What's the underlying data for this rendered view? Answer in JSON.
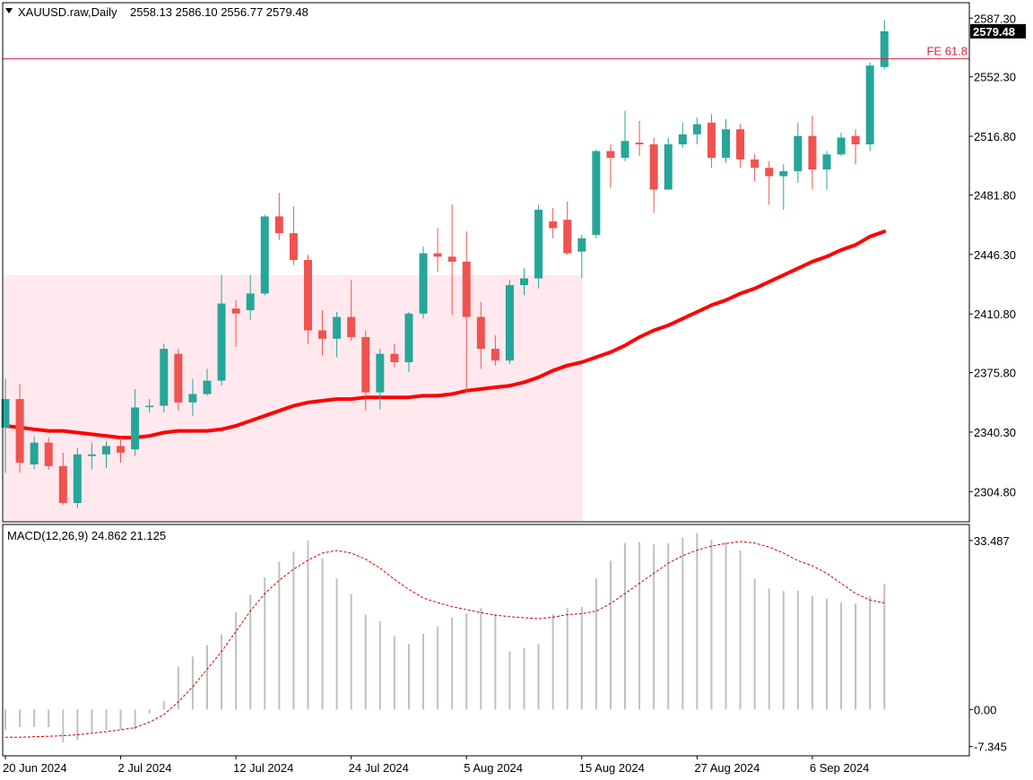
{
  "chart_data": {
    "type": "candlestick",
    "symbol": "XAUUSD.raw",
    "timeframe": "Daily",
    "header": {
      "title": "XAUUSD.raw,Daily",
      "ohlc": "2558.13 2586.10 2556.77 2579.48"
    },
    "current_price": 2579.48,
    "current_price_label": "2579.48",
    "y_axis": {
      "ylim": [
        2287.3,
        2596.0
      ],
      "ticks": [
        2304.8,
        2340.3,
        2375.8,
        2410.8,
        2446.3,
        2481.8,
        2516.8,
        2552.3,
        2587.3
      ],
      "tick_labels": [
        "2304.80",
        "2340.30",
        "2375.80",
        "2410.80",
        "2446.30",
        "2481.80",
        "2516.80",
        "2552.30",
        "2587.30"
      ]
    },
    "x_axis": {
      "labels": [
        "20 Jun 2024",
        "2 Jul 2024",
        "12 Jul 2024",
        "24 Jul 2024",
        "5 Aug 2024",
        "15 Aug 2024",
        "27 Aug 2024",
        "6 Sep 2024"
      ],
      "label_bar_index": [
        0,
        8,
        16,
        24,
        32,
        40,
        48,
        56
      ]
    },
    "candles": [
      {
        "date": "20 Jun",
        "o": 2343,
        "h": 2372,
        "l": 2316,
        "c": 2360
      },
      {
        "date": "21 Jun",
        "o": 2360,
        "h": 2369,
        "l": 2316,
        "c": 2322
      },
      {
        "date": "24 Jun",
        "o": 2321,
        "h": 2338,
        "l": 2318,
        "c": 2334
      },
      {
        "date": "25 Jun",
        "o": 2334,
        "h": 2337,
        "l": 2318,
        "c": 2320
      },
      {
        "date": "26 Jun",
        "o": 2320,
        "h": 2328,
        "l": 2297,
        "c": 2298
      },
      {
        "date": "27 Jun",
        "o": 2298,
        "h": 2331,
        "l": 2295,
        "c": 2327
      },
      {
        "date": "28 Jun",
        "o": 2326,
        "h": 2334,
        "l": 2318,
        "c": 2327
      },
      {
        "date": "1 Jul",
        "o": 2327,
        "h": 2335,
        "l": 2319,
        "c": 2332
      },
      {
        "date": "2 Jul",
        "o": 2332,
        "h": 2337,
        "l": 2322,
        "c": 2328
      },
      {
        "date": "3 Jul",
        "o": 2330,
        "h": 2366,
        "l": 2326,
        "c": 2355
      },
      {
        "date": "4 Jul",
        "o": 2356,
        "h": 2360,
        "l": 2352,
        "c": 2356
      },
      {
        "date": "5 Jul",
        "o": 2356,
        "h": 2393,
        "l": 2352,
        "c": 2390
      },
      {
        "date": "8 Jul",
        "o": 2387,
        "h": 2390,
        "l": 2353,
        "c": 2358
      },
      {
        "date": "9 Jul",
        "o": 2358,
        "h": 2372,
        "l": 2350,
        "c": 2363
      },
      {
        "date": "10 Jul",
        "o": 2363,
        "h": 2378,
        "l": 2362,
        "c": 2371
      },
      {
        "date": "11 Jul",
        "o": 2371,
        "h": 2434,
        "l": 2368,
        "c": 2417
      },
      {
        "date": "12 Jul",
        "o": 2414,
        "h": 2419,
        "l": 2391,
        "c": 2411
      },
      {
        "date": "15 Jul",
        "o": 2413,
        "h": 2434,
        "l": 2407,
        "c": 2423
      },
      {
        "date": "16 Jul",
        "o": 2423,
        "h": 2470,
        "l": 2422,
        "c": 2469
      },
      {
        "date": "17 Jul",
        "o": 2469,
        "h": 2483,
        "l": 2455,
        "c": 2459
      },
      {
        "date": "18 Jul",
        "o": 2459,
        "h": 2475,
        "l": 2440,
        "c": 2443
      },
      {
        "date": "19 Jul",
        "o": 2443,
        "h": 2446,
        "l": 2393,
        "c": 2401
      },
      {
        "date": "22 Jul",
        "o": 2401,
        "h": 2413,
        "l": 2386,
        "c": 2396
      },
      {
        "date": "23 Jul",
        "o": 2396,
        "h": 2412,
        "l": 2385,
        "c": 2409
      },
      {
        "date": "24 Jul",
        "o": 2409,
        "h": 2431,
        "l": 2395,
        "c": 2397
      },
      {
        "date": "25 Jul",
        "o": 2397,
        "h": 2401,
        "l": 2353,
        "c": 2364
      },
      {
        "date": "26 Jul",
        "o": 2364,
        "h": 2390,
        "l": 2354,
        "c": 2387
      },
      {
        "date": "29 Jul",
        "o": 2387,
        "h": 2393,
        "l": 2379,
        "c": 2382
      },
      {
        "date": "30 Jul",
        "o": 2382,
        "h": 2412,
        "l": 2376,
        "c": 2411
      },
      {
        "date": "31 Jul",
        "o": 2411,
        "h": 2451,
        "l": 2408,
        "c": 2447
      },
      {
        "date": "1 Aug",
        "o": 2447,
        "h": 2462,
        "l": 2436,
        "c": 2445
      },
      {
        "date": "2 Aug",
        "o": 2445,
        "h": 2476,
        "l": 2410,
        "c": 2442
      },
      {
        "date": "5 Aug",
        "o": 2442,
        "h": 2460,
        "l": 2364,
        "c": 2409
      },
      {
        "date": "6 Aug",
        "o": 2409,
        "h": 2418,
        "l": 2378,
        "c": 2390
      },
      {
        "date": "7 Aug",
        "o": 2390,
        "h": 2398,
        "l": 2380,
        "c": 2383
      },
      {
        "date": "8 Aug",
        "o": 2383,
        "h": 2431,
        "l": 2381,
        "c": 2428
      },
      {
        "date": "9 Aug",
        "o": 2428,
        "h": 2438,
        "l": 2422,
        "c": 2432
      },
      {
        "date": "12 Aug",
        "o": 2432,
        "h": 2476,
        "l": 2426,
        "c": 2473
      },
      {
        "date": "13 Aug",
        "o": 2466,
        "h": 2474,
        "l": 2456,
        "c": 2462
      },
      {
        "date": "14 Aug",
        "o": 2467,
        "h": 2478,
        "l": 2446,
        "c": 2447
      },
      {
        "date": "15 Aug",
        "o": 2448,
        "h": 2458,
        "l": 2432,
        "c": 2456
      },
      {
        "date": "16 Aug",
        "o": 2458,
        "h": 2509,
        "l": 2456,
        "c": 2508
      },
      {
        "date": "19 Aug",
        "o": 2508,
        "h": 2512,
        "l": 2486,
        "c": 2504
      },
      {
        "date": "20 Aug",
        "o": 2504,
        "h": 2532,
        "l": 2502,
        "c": 2514
      },
      {
        "date": "21 Aug",
        "o": 2513,
        "h": 2526,
        "l": 2505,
        "c": 2512
      },
      {
        "date": "22 Aug",
        "o": 2512,
        "h": 2516,
        "l": 2471,
        "c": 2485
      },
      {
        "date": "23 Aug",
        "o": 2485,
        "h": 2516,
        "l": 2485,
        "c": 2512
      },
      {
        "date": "26 Aug",
        "o": 2512,
        "h": 2525,
        "l": 2510,
        "c": 2518
      },
      {
        "date": "27 Aug",
        "o": 2518,
        "h": 2528,
        "l": 2512,
        "c": 2524
      },
      {
        "date": "28 Aug",
        "o": 2525,
        "h": 2530,
        "l": 2498,
        "c": 2504
      },
      {
        "date": "29 Aug",
        "o": 2504,
        "h": 2527,
        "l": 2501,
        "c": 2521
      },
      {
        "date": "30 Aug",
        "o": 2521,
        "h": 2524,
        "l": 2498,
        "c": 2503
      },
      {
        "date": "2 Sep",
        "o": 2503,
        "h": 2506,
        "l": 2490,
        "c": 2498
      },
      {
        "date": "3 Sep",
        "o": 2498,
        "h": 2502,
        "l": 2476,
        "c": 2493
      },
      {
        "date": "4 Sep",
        "o": 2493,
        "h": 2500,
        "l": 2473,
        "c": 2496
      },
      {
        "date": "5 Sep",
        "o": 2496,
        "h": 2525,
        "l": 2489,
        "c": 2517
      },
      {
        "date": "6 Sep",
        "o": 2517,
        "h": 2529,
        "l": 2485,
        "c": 2497
      },
      {
        "date": "9 Sep",
        "o": 2497,
        "h": 2508,
        "l": 2485,
        "c": 2506
      },
      {
        "date": "10 Sep",
        "o": 2506,
        "h": 2519,
        "l": 2505,
        "c": 2516
      },
      {
        "date": "11 Sep",
        "o": 2517,
        "h": 2521,
        "l": 2500,
        "c": 2512
      },
      {
        "date": "12 Sep",
        "o": 2512,
        "h": 2561,
        "l": 2508,
        "c": 2559
      },
      {
        "date": "13 Sep",
        "o": 2558.13,
        "h": 2586.1,
        "l": 2556.77,
        "c": 2579.48
      }
    ],
    "moving_average": {
      "color": "#ff0000",
      "values": [
        2344,
        2343,
        2342,
        2341,
        2341,
        2340,
        2339,
        2338,
        2337,
        2337,
        2338,
        2340,
        2341,
        2341,
        2341,
        2342,
        2344,
        2347,
        2350,
        2353,
        2356,
        2358,
        2359,
        2360,
        2360,
        2361,
        2361,
        2361,
        2361,
        2362,
        2362,
        2363,
        2365,
        2366,
        2367,
        2368,
        2370,
        2373,
        2377,
        2380,
        2382,
        2385,
        2388,
        2392,
        2397,
        2401,
        2404,
        2408,
        2412,
        2416,
        2419,
        2423,
        2426,
        2430,
        2434,
        2438,
        2442,
        2445,
        2449,
        2452,
        2457,
        2460
      ]
    },
    "fe_level": {
      "label": "FE 61.8",
      "value": 2563.0
    },
    "zone": {
      "label_visible": false,
      "from_index": 0,
      "to_index": 40,
      "top": 2434.0,
      "bottom": 2288.0,
      "color": "#ffe9ee"
    },
    "macd": {
      "title": "MACD(12,26,9) 24.862 21.125",
      "ylim": [
        -9.0,
        36.5
      ],
      "tick_labels": [
        "33.487",
        "0.00",
        "-7.345"
      ],
      "ticks": [
        33.487,
        0.0,
        -7.345
      ],
      "histogram": [
        -4.0,
        -3.5,
        -3.5,
        -3.5,
        -6.5,
        -6.0,
        -4.5,
        -4.0,
        -4.0,
        -4.0,
        -0.8,
        1.7,
        8.5,
        10.5,
        12.8,
        14.9,
        19.3,
        22.7,
        26.2,
        29.3,
        31.3,
        33.5,
        30.0,
        26.0,
        22.9,
        18.8,
        17.5,
        14.5,
        13.0,
        15.0,
        16.5,
        18.2,
        19.1,
        20.1,
        18.9,
        11.5,
        12.2,
        13.0,
        18.9,
        20.1,
        20.3,
        26.0,
        29.5,
        33.0,
        33.2,
        32.8,
        33.0,
        34.1,
        35.0,
        33.7,
        33.2,
        31.5,
        26.0,
        24.0,
        23.5,
        23.5,
        22.5,
        22.0,
        21.2,
        21.0,
        22.5,
        24.862
      ],
      "signal": [
        -5.5,
        -5.5,
        -5.4,
        -5.3,
        -5.2,
        -5.0,
        -4.7,
        -4.4,
        -4.0,
        -3.6,
        -2.5,
        -1.0,
        1.5,
        4.5,
        8.0,
        11.5,
        15.5,
        19.5,
        23.0,
        25.6,
        27.8,
        29.6,
        31.0,
        31.5,
        31.0,
        29.8,
        28.0,
        25.8,
        23.8,
        22.1,
        21.2,
        20.4,
        19.8,
        19.2,
        18.7,
        18.4,
        18.2,
        18.0,
        18.3,
        18.8,
        19.0,
        19.5,
        21.0,
        23.0,
        25.0,
        27.0,
        29.0,
        30.5,
        31.6,
        32.4,
        32.9,
        33.3,
        33.0,
        32.2,
        31.0,
        29.5,
        28.5,
        27.0,
        25.0,
        23.0,
        21.7,
        21.125
      ]
    },
    "colors": {
      "bull": "#26a69a",
      "bear": "#ef5350",
      "ma": "#ff0000",
      "fe": "#d7263d",
      "macd_hist": "#c0c0c0",
      "macd_signal": "#d00000"
    }
  }
}
